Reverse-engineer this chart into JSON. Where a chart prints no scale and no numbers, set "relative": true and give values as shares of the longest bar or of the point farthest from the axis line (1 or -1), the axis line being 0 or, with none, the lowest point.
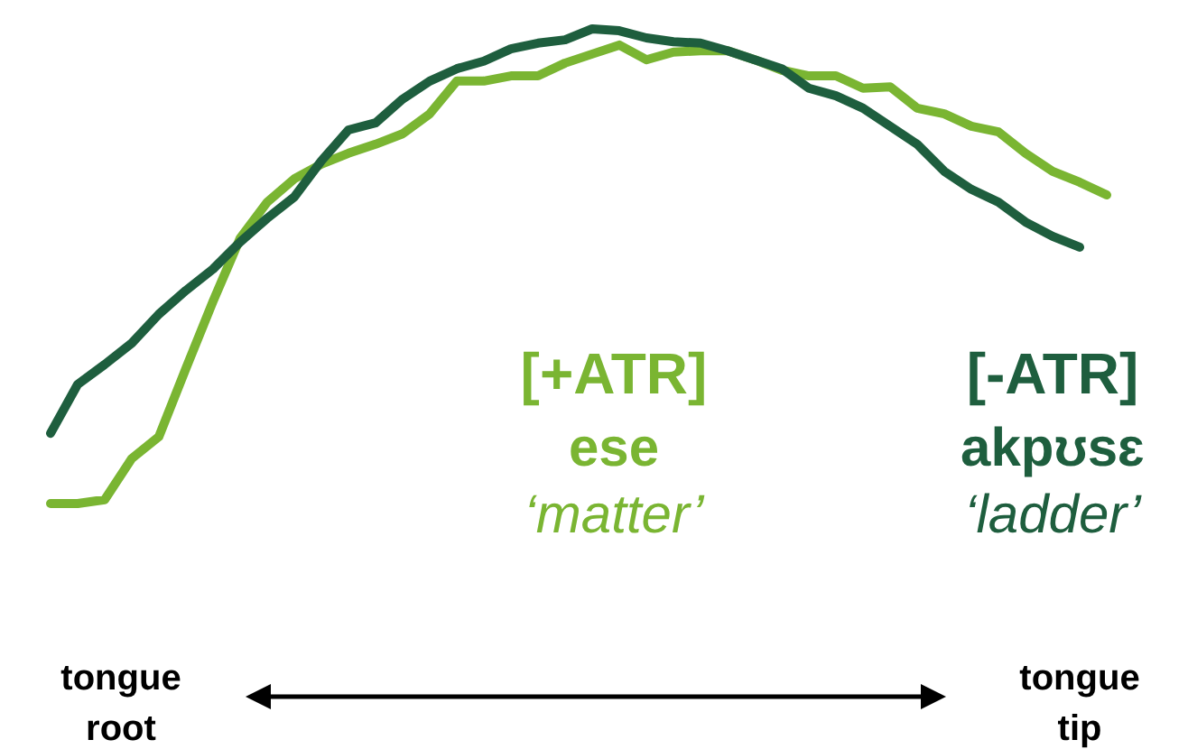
{
  "chart_data": {
    "type": "line",
    "relative": true,
    "categories": [
      null,
      null,
      null,
      null,
      null,
      null,
      null,
      null,
      null,
      null,
      null,
      null,
      null,
      null,
      null,
      null,
      null,
      null,
      null,
      null,
      null,
      null,
      null,
      null,
      null,
      null,
      null,
      null,
      null,
      null,
      null,
      null,
      null,
      null,
      null,
      null,
      null,
      null,
      null,
      null
    ],
    "series": [
      {
        "name": "[+ATR]",
        "color": "#7ab532",
        "values": [
          0,
          0,
          0.008,
          0.095,
          0.141,
          0.285,
          0.426,
          0.559,
          0.635,
          0.684,
          0.715,
          0.738,
          0.757,
          0.779,
          0.821,
          0.89,
          0.89,
          0.901,
          0.901,
          0.928,
          0.947,
          0.966,
          0.935,
          0.951,
          0.954,
          0.954,
          0.935,
          0.913,
          0.901,
          0.901,
          0.875,
          0.878,
          0.833,
          0.821,
          0.795,
          0.783,
          0.738,
          0.7,
          0.677,
          0.65
        ]
      },
      {
        "name": "[-ATR]",
        "color": "#1e5e3e",
        "values": [
          0.148,
          0.251,
          0.293,
          0.338,
          0.399,
          0.449,
          0.494,
          0.551,
          0.601,
          0.646,
          0.722,
          0.787,
          0.802,
          0.852,
          0.89,
          0.916,
          0.932,
          0.958,
          0.97,
          0.977,
          1,
          0.996,
          0.981,
          0.973,
          0.97,
          0.954,
          0.935,
          0.916,
          0.875,
          0.859,
          0.833,
          0.795,
          0.757,
          0.7,
          0.662,
          0.635,
          0.593,
          0.563,
          0.54,
          null
        ]
      }
    ],
    "annotations": [
      "ese",
      "‘matter’",
      "akpʊsɛ",
      "‘ladder’",
      "tongue root",
      "tongue tip"
    ]
  }
}
